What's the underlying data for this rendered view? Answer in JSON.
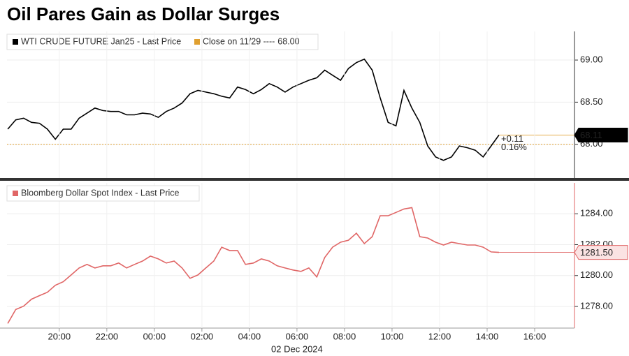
{
  "title": "Oil Pares Gain as Dollar Surges",
  "chart_data": [
    {
      "type": "line",
      "x": [
        "17:50",
        "18:10",
        "18:30",
        "18:50",
        "19:10",
        "19:30",
        "19:50",
        "20:10",
        "20:30",
        "20:50",
        "21:10",
        "21:30",
        "21:50",
        "22:10",
        "22:30",
        "22:50",
        "23:10",
        "23:30",
        "23:50",
        "00:10",
        "00:30",
        "00:50",
        "01:10",
        "01:30",
        "01:50",
        "02:10",
        "02:30",
        "02:50",
        "03:10",
        "03:30",
        "03:50",
        "04:10",
        "04:30",
        "04:50",
        "05:10",
        "05:30",
        "05:50",
        "06:10",
        "06:30",
        "06:50",
        "07:10",
        "07:30",
        "07:50",
        "08:10",
        "08:30",
        "08:50",
        "09:10",
        "09:30",
        "09:50",
        "10:10",
        "10:30",
        "10:50",
        "11:10",
        "11:30",
        "11:50",
        "12:10",
        "12:30",
        "12:50",
        "13:10",
        "13:30",
        "13:50",
        "14:10",
        "14:30"
      ],
      "series": [
        {
          "name": "WTI CRUDE FUTURE Jan25 - Last Price",
          "color": "#000000",
          "values": [
            68.18,
            68.29,
            68.31,
            68.26,
            68.25,
            68.18,
            68.06,
            68.18,
            68.18,
            68.31,
            68.37,
            68.43,
            68.4,
            68.39,
            68.39,
            68.35,
            68.35,
            68.37,
            68.36,
            68.32,
            68.39,
            68.43,
            68.49,
            68.6,
            68.64,
            68.62,
            68.6,
            68.57,
            68.55,
            68.68,
            68.65,
            68.6,
            68.65,
            68.72,
            68.68,
            68.62,
            68.68,
            68.72,
            68.76,
            68.79,
            68.88,
            68.82,
            68.76,
            68.9,
            68.97,
            69.01,
            68.88,
            68.55,
            68.26,
            68.22,
            68.64,
            68.43,
            68.26,
            67.98,
            67.85,
            67.81,
            67.85,
            67.98,
            67.96,
            67.93,
            67.85,
            67.98,
            68.11
          ]
        }
      ],
      "reference_line": {
        "name": "Close on 11/29 ----",
        "value": 68.0,
        "label": "68.00",
        "color": "#e0a030"
      },
      "change": {
        "value": 0.11,
        "label": "+0.11"
      },
      "change_pct": {
        "value": 0.16,
        "label": "0.16%"
      },
      "last": {
        "value": 68.11,
        "label": "68.11"
      },
      "xlim": [
        "17:48",
        "17:37"
      ],
      "ylim": [
        67.6,
        69.34
      ],
      "yticks": [
        {
          "value": 68.0,
          "label": "68.00"
        },
        {
          "value": 68.5,
          "label": "68.50"
        },
        {
          "value": 69.0,
          "label": "69.00"
        }
      ],
      "grid": true
    },
    {
      "type": "line",
      "x": [
        "17:50",
        "18:10",
        "18:30",
        "18:50",
        "19:10",
        "19:30",
        "19:50",
        "20:10",
        "20:30",
        "20:50",
        "21:10",
        "21:30",
        "21:50",
        "22:10",
        "22:30",
        "22:50",
        "23:10",
        "23:30",
        "23:50",
        "00:10",
        "00:30",
        "00:50",
        "01:10",
        "01:30",
        "01:50",
        "02:10",
        "02:30",
        "02:50",
        "03:10",
        "03:30",
        "03:50",
        "04:10",
        "04:30",
        "04:50",
        "05:10",
        "05:30",
        "05:50",
        "06:10",
        "06:30",
        "06:50",
        "07:10",
        "07:30",
        "07:50",
        "08:10",
        "08:30",
        "08:50",
        "09:10",
        "09:30",
        "09:50",
        "10:10",
        "10:30",
        "10:50",
        "11:10",
        "11:30",
        "11:50",
        "12:10",
        "12:30",
        "12:50",
        "13:10",
        "13:30",
        "13:50",
        "14:10",
        "14:30"
      ],
      "series": [
        {
          "name": "Bloomberg Dollar Spot Index - Last Price",
          "color": "#e06666",
          "values": [
            1276.9,
            1277.8,
            1278.02,
            1278.47,
            1278.7,
            1278.92,
            1279.37,
            1279.6,
            1280.04,
            1280.49,
            1280.72,
            1280.49,
            1280.63,
            1280.63,
            1280.81,
            1280.49,
            1280.72,
            1280.94,
            1281.26,
            1281.08,
            1280.81,
            1280.94,
            1280.49,
            1279.82,
            1280.04,
            1280.49,
            1280.94,
            1281.84,
            1281.62,
            1281.62,
            1280.72,
            1280.81,
            1281.08,
            1280.94,
            1280.63,
            1280.49,
            1280.36,
            1280.27,
            1280.49,
            1279.91,
            1281.17,
            1281.84,
            1282.16,
            1282.29,
            1282.74,
            1282.07,
            1282.52,
            1283.87,
            1283.87,
            1284.09,
            1284.31,
            1284.4,
            1282.52,
            1282.43,
            1282.16,
            1281.98,
            1282.16,
            1282.07,
            1281.98,
            1281.98,
            1281.84,
            1281.53,
            1281.5
          ]
        }
      ],
      "last": {
        "value": 1281.5,
        "label": "1281.50"
      },
      "xlim": [
        "17:48",
        "17:37"
      ],
      "xticks": [
        "20:00",
        "22:00",
        "00:00",
        "02:00",
        "04:00",
        "06:00",
        "08:00",
        "10:00",
        "12:00",
        "14:00",
        "16:00"
      ],
      "date_label": "02 Dec 2024",
      "ylim": [
        1276.6,
        1286.0
      ],
      "yticks": [
        {
          "value": 1278,
          "label": "1278.00"
        },
        {
          "value": 1280,
          "label": "1280.00"
        },
        {
          "value": 1282,
          "label": "1282.00"
        },
        {
          "value": 1284,
          "label": "1284.00"
        }
      ],
      "grid": true
    }
  ]
}
